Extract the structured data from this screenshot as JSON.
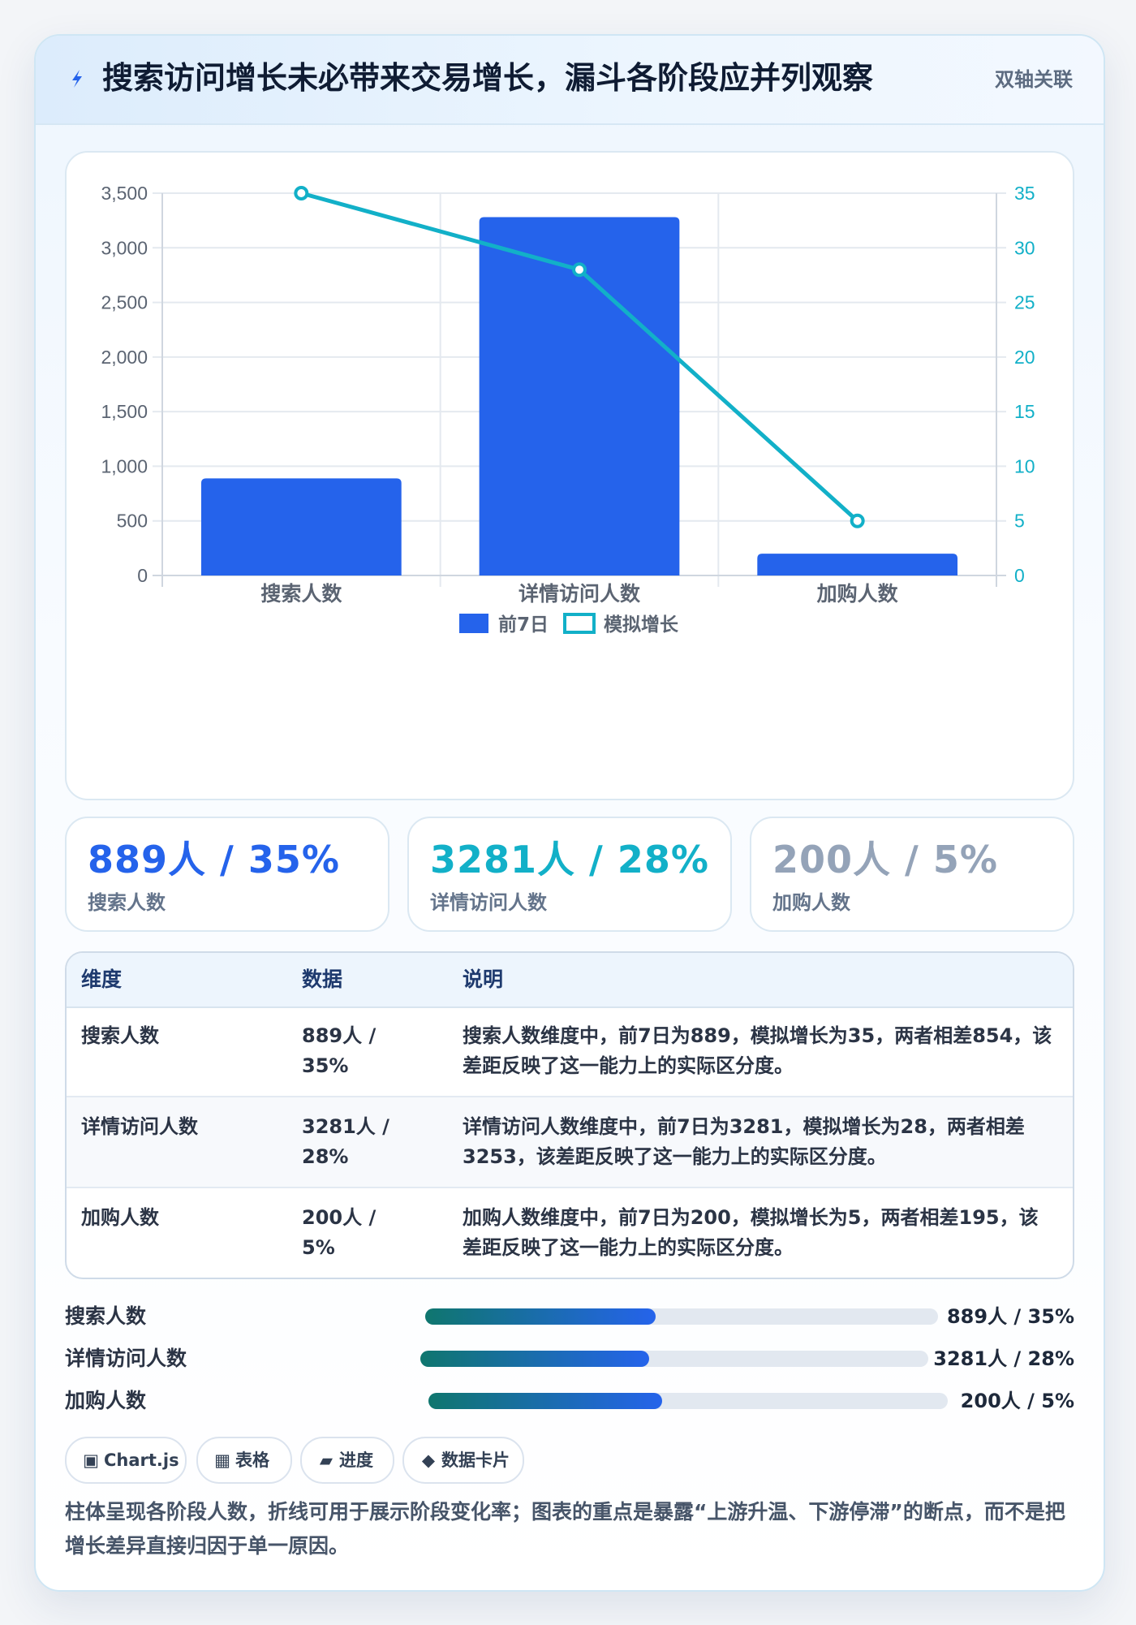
{
  "header": {
    "title": "搜索访问增长未必带来交易增长，漏斗各阶段应并列观察",
    "tag": "双轴关联",
    "icon": "lightning-icon"
  },
  "chart_data": {
    "type": "bar",
    "categories": [
      "搜索人数",
      "详情访问人数",
      "加购人数"
    ],
    "series": [
      {
        "name": "前7日",
        "type": "bar",
        "axis": "left",
        "color": "#2563eb",
        "values": [
          889,
          3281,
          200
        ]
      },
      {
        "name": "模拟增长",
        "type": "line",
        "axis": "right",
        "color": "#12b0c8",
        "values": [
          35,
          28,
          5
        ]
      }
    ],
    "y_left": {
      "min": 0,
      "max": 3500,
      "ticks": [
        "0",
        "500",
        "1,000",
        "1,500",
        "2,000",
        "2,500",
        "3,000",
        "3,500"
      ]
    },
    "y_right": {
      "min": 0,
      "max": 35,
      "ticks": [
        "0",
        "5",
        "10",
        "15",
        "20",
        "25",
        "30",
        "35"
      ]
    },
    "grid": true,
    "legend": "bottom"
  },
  "kpis": [
    {
      "value": "889人 / 35%",
      "label": "搜索人数",
      "color": "#2563eb"
    },
    {
      "value": "3281人 / 28%",
      "label": "详情访问人数",
      "color": "#12b0c8"
    },
    {
      "value": "200人 / 5%",
      "label": "加购人数",
      "color": "#94a3b8"
    }
  ],
  "table": {
    "headers": [
      "维度",
      "数据",
      "说明"
    ],
    "rows": [
      {
        "name": "搜索人数",
        "data": "889人 / 35%",
        "desc": "搜索人数维度中，前7日为889，模拟增长为35，两者相差854，该差距反映了这一能力上的实际区分度。"
      },
      {
        "name": "详情访问人数",
        "data": "3281人 / 28%",
        "desc": "详情访问人数维度中，前7日为3281，模拟增长为28，两者相差3253，该差距反映了这一能力上的实际区分度。"
      },
      {
        "name": "加购人数",
        "data": "200人 / 5%",
        "desc": "加购人数维度中，前7日为200，模拟增长为5，两者相差195，该差距反映了这一能力上的实际区分度。"
      }
    ]
  },
  "progress": [
    {
      "label": "搜索人数",
      "value": "889人 / 35%",
      "fraction": 0.45
    },
    {
      "label": "详情访问人数",
      "value": "3281人 / 28%",
      "fraction": 0.45
    },
    {
      "label": "加购人数",
      "value": "200人 / 5%",
      "fraction": 0.45
    }
  ],
  "chips": [
    {
      "icon": "chart-icon",
      "glyph": "▣",
      "label": "Chart.js"
    },
    {
      "icon": "table-icon",
      "glyph": "▦",
      "label": "表格"
    },
    {
      "icon": "progress-icon",
      "glyph": "▰",
      "label": "进度"
    },
    {
      "icon": "card-icon",
      "glyph": "◆",
      "label": "数据卡片"
    }
  ],
  "note": "柱体呈现各阶段人数，折线可用于展示阶段变化率；图表的重点是暴露“上游升温、下游停滞”的断点，而不是把增长差异直接归因于单一原因。"
}
